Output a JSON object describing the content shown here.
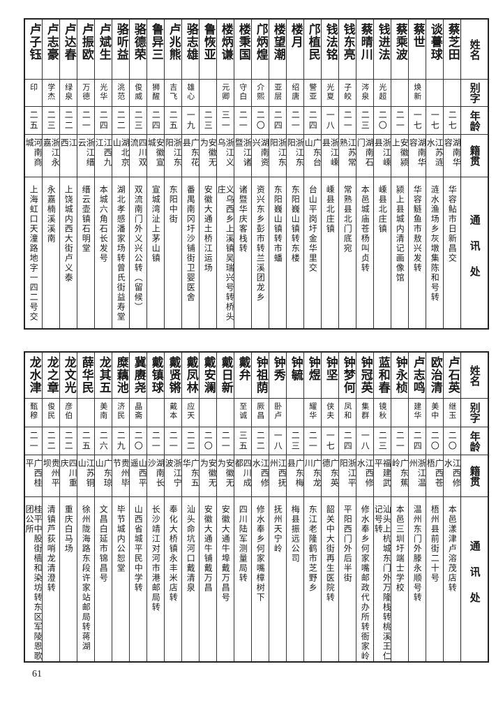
{
  "headers": [
    "姓名",
    "别字",
    "年龄",
    "籍贯",
    "通讯处"
  ],
  "top_table": {
    "rows": [
      {
        "name": "蔡芝田",
        "alias": "",
        "age": "二七",
        "origin": "湖南华容",
        "address": "华容鲇市日新昌交"
      },
      {
        "name": "谈謩球",
        "alias": "",
        "age": "一七",
        "origin": "江苏涟水",
        "address": "涟水渔场乡灰墩集陈和号转"
      },
      {
        "name": "蔡世",
        "alias": "焕新",
        "age": "一七",
        "origin": "湖南华容",
        "address": "华容鲢鱼市敖兴发转"
      },
      {
        "name": "蔡乘波",
        "alias": "",
        "age": "二一",
        "origin": "安徽颍上",
        "address": "颍上县城内清记画像馆"
      },
      {
        "name": "钱进法",
        "alias": "光超",
        "age": "二〇",
        "origin": "浙江嵊县",
        "address": "嵊县北庄镇"
      },
      {
        "name": "蔡晴川",
        "alias": "涔泉",
        "age": "二三",
        "origin": "湖南石门",
        "address": "本邑城庙苍杨叫贞转"
      },
      {
        "name": "钱东亮",
        "alias": "子皎",
        "age": "二一",
        "origin": "江苏常熟",
        "address": "常熟县北门底宛"
      },
      {
        "name": "钱法铭",
        "alias": "光夏",
        "age": "一八",
        "origin": "浙江嵊县",
        "address": "嵊县北庄镇"
      },
      {
        "name": "邝植民",
        "alias": "警亚",
        "age": "二四",
        "origin": "广东台山",
        "address": "台山平岗圩金华里交"
      },
      {
        "name": "楼月",
        "alias": "绍唐",
        "age": "二一",
        "origin": "浙江东阳",
        "address": "东阳巍山镇转东楼"
      },
      {
        "name": "楼望潮",
        "alias": "亚层",
        "age": "二四",
        "origin": "浙江东阳",
        "address": "东阳巍山镇转市蟠"
      },
      {
        "name": "邝炳煌",
        "alias": "介熙",
        "age": "二〇",
        "origin": "湖南资兴",
        "address": "资兴东乡彭市转兰溪团龙乡"
      },
      {
        "name": "楼秉国",
        "alias": "守白",
        "age": "二一",
        "origin": "浙江诸暨",
        "address": "诸暨华庆客栈转"
      },
      {
        "name": "楼炳谦",
        "alias": "元卿",
        "age": "三一",
        "origin": "浙江义乌",
        "address": "义乌西乡上溪镇吴瑞兴号转桥头庄"
      },
      {
        "name": "鲁恢亚",
        "alias": "",
        "age": "二三",
        "origin": "安徽无为",
        "address": "安徽大通土桥江运场"
      },
      {
        "name": "骆志雄",
        "alias": "雄心",
        "age": "一九",
        "origin": "广东花县",
        "address": "番禺南冈圩沙铺街卫婴医舍"
      },
      {
        "name": "卢兆熊",
        "alias": "吉飞",
        "age": "二五",
        "origin": "浙江东阳",
        "address": "东阳中街"
      },
      {
        "name": "鲁异三",
        "alias": "狮醒",
        "age": "二四",
        "origin": "安徽宣城",
        "address": "宣城湾沚上茅山镇"
      },
      {
        "name": "骆德荣",
        "alias": "俊威",
        "age": "二三",
        "origin": "四川双流",
        "address": "双流南门外义兴公转（留候）"
      },
      {
        "name": "骆听益",
        "alias": "洮范",
        "age": "二二",
        "origin": "湖北京山",
        "address": "湖北孝感潘家场转曾氏街益寿堂"
      },
      {
        "name": "卢斌生",
        "alias": "光华",
        "age": "二四",
        "origin": "江西九江",
        "address": "本城六角石长发号"
      },
      {
        "name": "卢振欧",
        "alias": "万德",
        "age": "二一",
        "origin": "浙江缙云",
        "address": "缙云壶镇石明堂"
      },
      {
        "name": "卢达春",
        "alias": "绿泉",
        "age": "二二",
        "origin": "江　　西",
        "address": "上饶城内西大街卢义泰"
      },
      {
        "name": "卢志豪",
        "alias": "学杰",
        "age": "二三",
        "origin": "浙江永嘉",
        "address": "永嘉楠溪溪南"
      },
      {
        "name": "卢子钰",
        "alias": "印",
        "age": "二五",
        "origin": "河南商城",
        "address": "上海虹口天潼路地字一四二号交"
      }
    ]
  },
  "bottom_table": {
    "rows": [
      {
        "name": "卢石英",
        "alias": "继玉",
        "age": "二〇",
        "origin": "江西修水",
        "address": "本邑漾津卢溶茂店转"
      },
      {
        "name": "欧治清",
        "alias": "美中",
        "age": "二〇",
        "origin": "广西苍梧",
        "address": "梧州县前街二十号"
      },
      {
        "name": "卢志鸣",
        "alias": "建华",
        "age": "二四",
        "origin": "浙江温州",
        "address": "温州东门外滕永顺号转"
      },
      {
        "name": "钟永桢",
        "alias": "",
        "age": "二一",
        "origin": "广东蕉岭",
        "address": "本邑三圳圩端士学校"
      },
      {
        "name": "蓝和春",
        "alias": "镜秋",
        "age": "二三",
        "origin": "福建武平",
        "address": "汕头上杭城东门外万隆栈转桃溪王仁记号转"
      },
      {
        "name": "钟冠英",
        "alias": "集群",
        "age": "一八",
        "origin": "江西修水",
        "address": "修水奉乡何家嘴邮政代办所转衙家岭"
      },
      {
        "name": "钟梦何",
        "alias": "凤和",
        "age": "二四",
        "origin": "浙江平阳",
        "address": "平阳西门外后半街"
      },
      {
        "name": "钟坚",
        "alias": "侠夫",
        "age": "一七",
        "origin": "广东英德",
        "address": "韶关中大街再生医院转"
      },
      {
        "name": "钟煜",
        "alias": "耀华",
        "age": "二一",
        "origin": "广东龙川",
        "address": "东江老隆鹤市芝野乡"
      },
      {
        "name": "钟毓",
        "alias": "",
        "age": "二三",
        "origin": "广东梅县",
        "address": "梅县振远公司"
      },
      {
        "name": "钟秀",
        "alias": "卧卢",
        "age": "一八",
        "origin": "江西抚州",
        "address": "抚州天宁岭"
      },
      {
        "name": "钟祖荫",
        "alias": "厥昌",
        "age": "二二",
        "origin": "江西修水",
        "address": "修水奉乡何家嘴樟树下"
      },
      {
        "name": "戴弁",
        "alias": "至诚",
        "age": "三五",
        "origin": "四川成都",
        "address": "四川陆军测量局转"
      },
      {
        "name": "戴日新",
        "alias": "",
        "age": "二一",
        "origin": "安徽无为",
        "address": "安徽大通牛埠戴万昌号"
      },
      {
        "name": "戴安澜",
        "alias": "",
        "age": "二〇",
        "origin": "安徽无为",
        "address": "安徽大通牛铺戴万昌"
      },
      {
        "name": "戴凤林",
        "alias": "应天",
        "age": "二二",
        "origin": "广东五华",
        "address": "汕头命坑河口戴清泉"
      },
      {
        "name": "戴贤锵",
        "alias": "戴本",
        "age": "二一",
        "origin": "浙江宁波",
        "address": "奉化大桥镇永丰米店转"
      },
      {
        "name": "戴镇球",
        "alias": "",
        "age": "二一",
        "origin": "湖南长沙",
        "address": "长沙靖江对河市港邮局转"
      },
      {
        "name": "冀赓尧",
        "alias": "晶斋",
        "age": "二〇",
        "origin": "山西平遥",
        "address": "山西省城平民中学转"
      },
      {
        "name": "糜藕池",
        "alias": "济民",
        "age": "二九",
        "origin": "贵州毕节",
        "address": "毕节城内公恕堂"
      },
      {
        "name": "龙其五",
        "alias": "美南",
        "age": "二六",
        "origin": "广东琼山",
        "address": "文昌白延市锦昌号"
      },
      {
        "name": "薛华民",
        "alias": "",
        "age": "二五",
        "origin": "江苏铜山",
        "address": "徐州陇海路东段许家站邮局转蒋湖"
      },
      {
        "name": "龙文光",
        "alias": "彦伯",
        "age": "二二",
        "origin": "四川重庆",
        "address": "重庆白马场"
      },
      {
        "name": "龙之章",
        "alias": "俊民",
        "age": "二二",
        "origin": "贵州平坝",
        "address": "清镇芦荻哨龙清澄转"
      },
      {
        "name": "龙水津",
        "alias": "甄穆",
        "age": "二一",
        "origin": "广西桂平",
        "address": "桂平中股街樯和染坊转东区军陵恩歌团公所"
      }
    ]
  },
  "page_number": "61"
}
